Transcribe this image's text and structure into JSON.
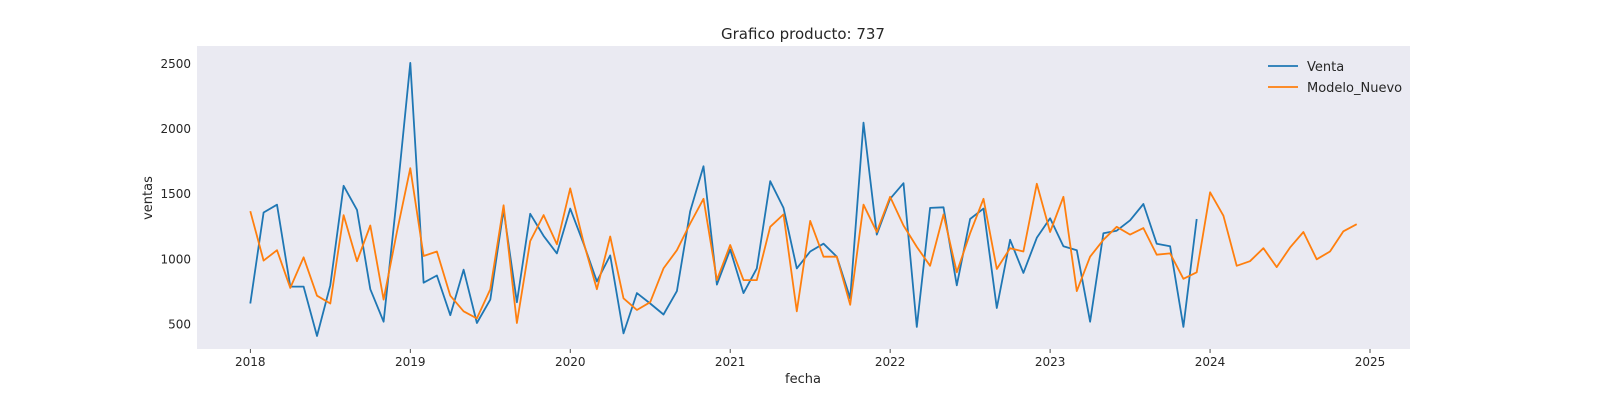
{
  "chart_data": {
    "type": "line",
    "title": "Grafico producto: 737",
    "xlabel": "fecha",
    "ylabel": "ventas",
    "x_ticks": [
      "2018",
      "2019",
      "2020",
      "2021",
      "2022",
      "2023",
      "2024",
      "2025"
    ],
    "y_ticks": [
      "500",
      "1000",
      "1500",
      "2000",
      "2500"
    ],
    "xlim": [
      "2017-09-01",
      "2025-04-01"
    ],
    "ylim": [
      310,
      2640
    ],
    "grid": false,
    "background": "#eaeaf2",
    "legend_position": "top-right",
    "series": [
      {
        "name": "Venta",
        "color": "#1f77b4",
        "x": [
          "2018-01",
          "2018-02",
          "2018-03",
          "2018-04",
          "2018-05",
          "2018-06",
          "2018-07",
          "2018-08",
          "2018-09",
          "2018-10",
          "2018-11",
          "2018-12",
          "2019-01",
          "2019-02",
          "2019-03",
          "2019-04",
          "2019-05",
          "2019-06",
          "2019-07",
          "2019-08",
          "2019-09",
          "2019-10",
          "2019-11",
          "2019-12",
          "2020-01",
          "2020-02",
          "2020-03",
          "2020-04",
          "2020-05",
          "2020-06",
          "2020-07",
          "2020-08",
          "2020-09",
          "2020-10",
          "2020-11",
          "2020-12",
          "2021-01",
          "2021-02",
          "2021-03",
          "2021-04",
          "2021-05",
          "2021-06",
          "2021-07",
          "2021-08",
          "2021-09",
          "2021-10",
          "2021-11",
          "2021-12",
          "2022-01",
          "2022-02",
          "2022-03",
          "2022-04",
          "2022-05",
          "2022-06",
          "2022-07",
          "2022-08",
          "2022-09",
          "2022-10",
          "2022-11",
          "2022-12",
          "2023-01",
          "2023-02",
          "2023-03",
          "2023-04",
          "2023-05",
          "2023-06",
          "2023-07",
          "2023-08",
          "2023-09",
          "2023-10",
          "2023-11",
          "2023-12"
        ],
        "values": [
          660,
          1360,
          1420,
          790,
          790,
          410,
          800,
          1565,
          1380,
          770,
          520,
          1480,
          2510,
          820,
          875,
          570,
          920,
          510,
          690,
          1380,
          670,
          1350,
          1180,
          1045,
          1390,
          1120,
          830,
          1030,
          430,
          740,
          660,
          575,
          755,
          1370,
          1715,
          805,
          1075,
          740,
          930,
          1600,
          1395,
          930,
          1060,
          1120,
          1020,
          700,
          2050,
          1190,
          1465,
          1585,
          480,
          1395,
          1400,
          800,
          1310,
          1390,
          625,
          1150,
          895,
          1165,
          1315,
          1100,
          1070,
          520,
          1200,
          1220,
          1300,
          1425,
          1120,
          1100,
          480,
          1310
        ]
      },
      {
        "name": "Modelo_Nuevo",
        "color": "#ff7f0e",
        "x": [
          "2018-01",
          "2018-02",
          "2018-03",
          "2018-04",
          "2018-05",
          "2018-06",
          "2018-07",
          "2018-08",
          "2018-09",
          "2018-10",
          "2018-11",
          "2018-12",
          "2019-01",
          "2019-02",
          "2019-03",
          "2019-04",
          "2019-05",
          "2019-06",
          "2019-07",
          "2019-08",
          "2019-09",
          "2019-10",
          "2019-11",
          "2019-12",
          "2020-01",
          "2020-02",
          "2020-03",
          "2020-04",
          "2020-05",
          "2020-06",
          "2020-07",
          "2020-08",
          "2020-09",
          "2020-10",
          "2020-11",
          "2020-12",
          "2021-01",
          "2021-02",
          "2021-03",
          "2021-04",
          "2021-05",
          "2021-06",
          "2021-07",
          "2021-08",
          "2021-09",
          "2021-10",
          "2021-11",
          "2021-12",
          "2022-01",
          "2022-02",
          "2022-03",
          "2022-04",
          "2022-05",
          "2022-06",
          "2022-07",
          "2022-08",
          "2022-09",
          "2022-10",
          "2022-11",
          "2022-12",
          "2023-01",
          "2023-02",
          "2023-03",
          "2023-04",
          "2023-05",
          "2023-06",
          "2023-07",
          "2023-08",
          "2023-09",
          "2023-10",
          "2023-11",
          "2023-12",
          "2024-01",
          "2024-02",
          "2024-03",
          "2024-04",
          "2024-05",
          "2024-06",
          "2024-07",
          "2024-08",
          "2024-09",
          "2024-10",
          "2024-11",
          "2024-12"
        ],
        "values": [
          1370,
          990,
          1070,
          780,
          1015,
          720,
          660,
          1340,
          985,
          1260,
          690,
          1210,
          1700,
          1025,
          1060,
          720,
          600,
          545,
          770,
          1415,
          510,
          1140,
          1340,
          1115,
          1545,
          1130,
          770,
          1175,
          700,
          610,
          670,
          930,
          1070,
          1275,
          1465,
          840,
          1110,
          840,
          840,
          1250,
          1345,
          600,
          1295,
          1020,
          1020,
          650,
          1420,
          1210,
          1480,
          1260,
          1095,
          950,
          1345,
          900,
          1200,
          1465,
          925,
          1085,
          1060,
          1580,
          1210,
          1480,
          755,
          1020,
          1150,
          1250,
          1190,
          1240,
          1035,
          1045,
          850,
          900,
          1515,
          1335,
          950,
          985,
          1085,
          940,
          1090,
          1210,
          1000,
          1060,
          1215,
          1270
        ]
      }
    ]
  }
}
